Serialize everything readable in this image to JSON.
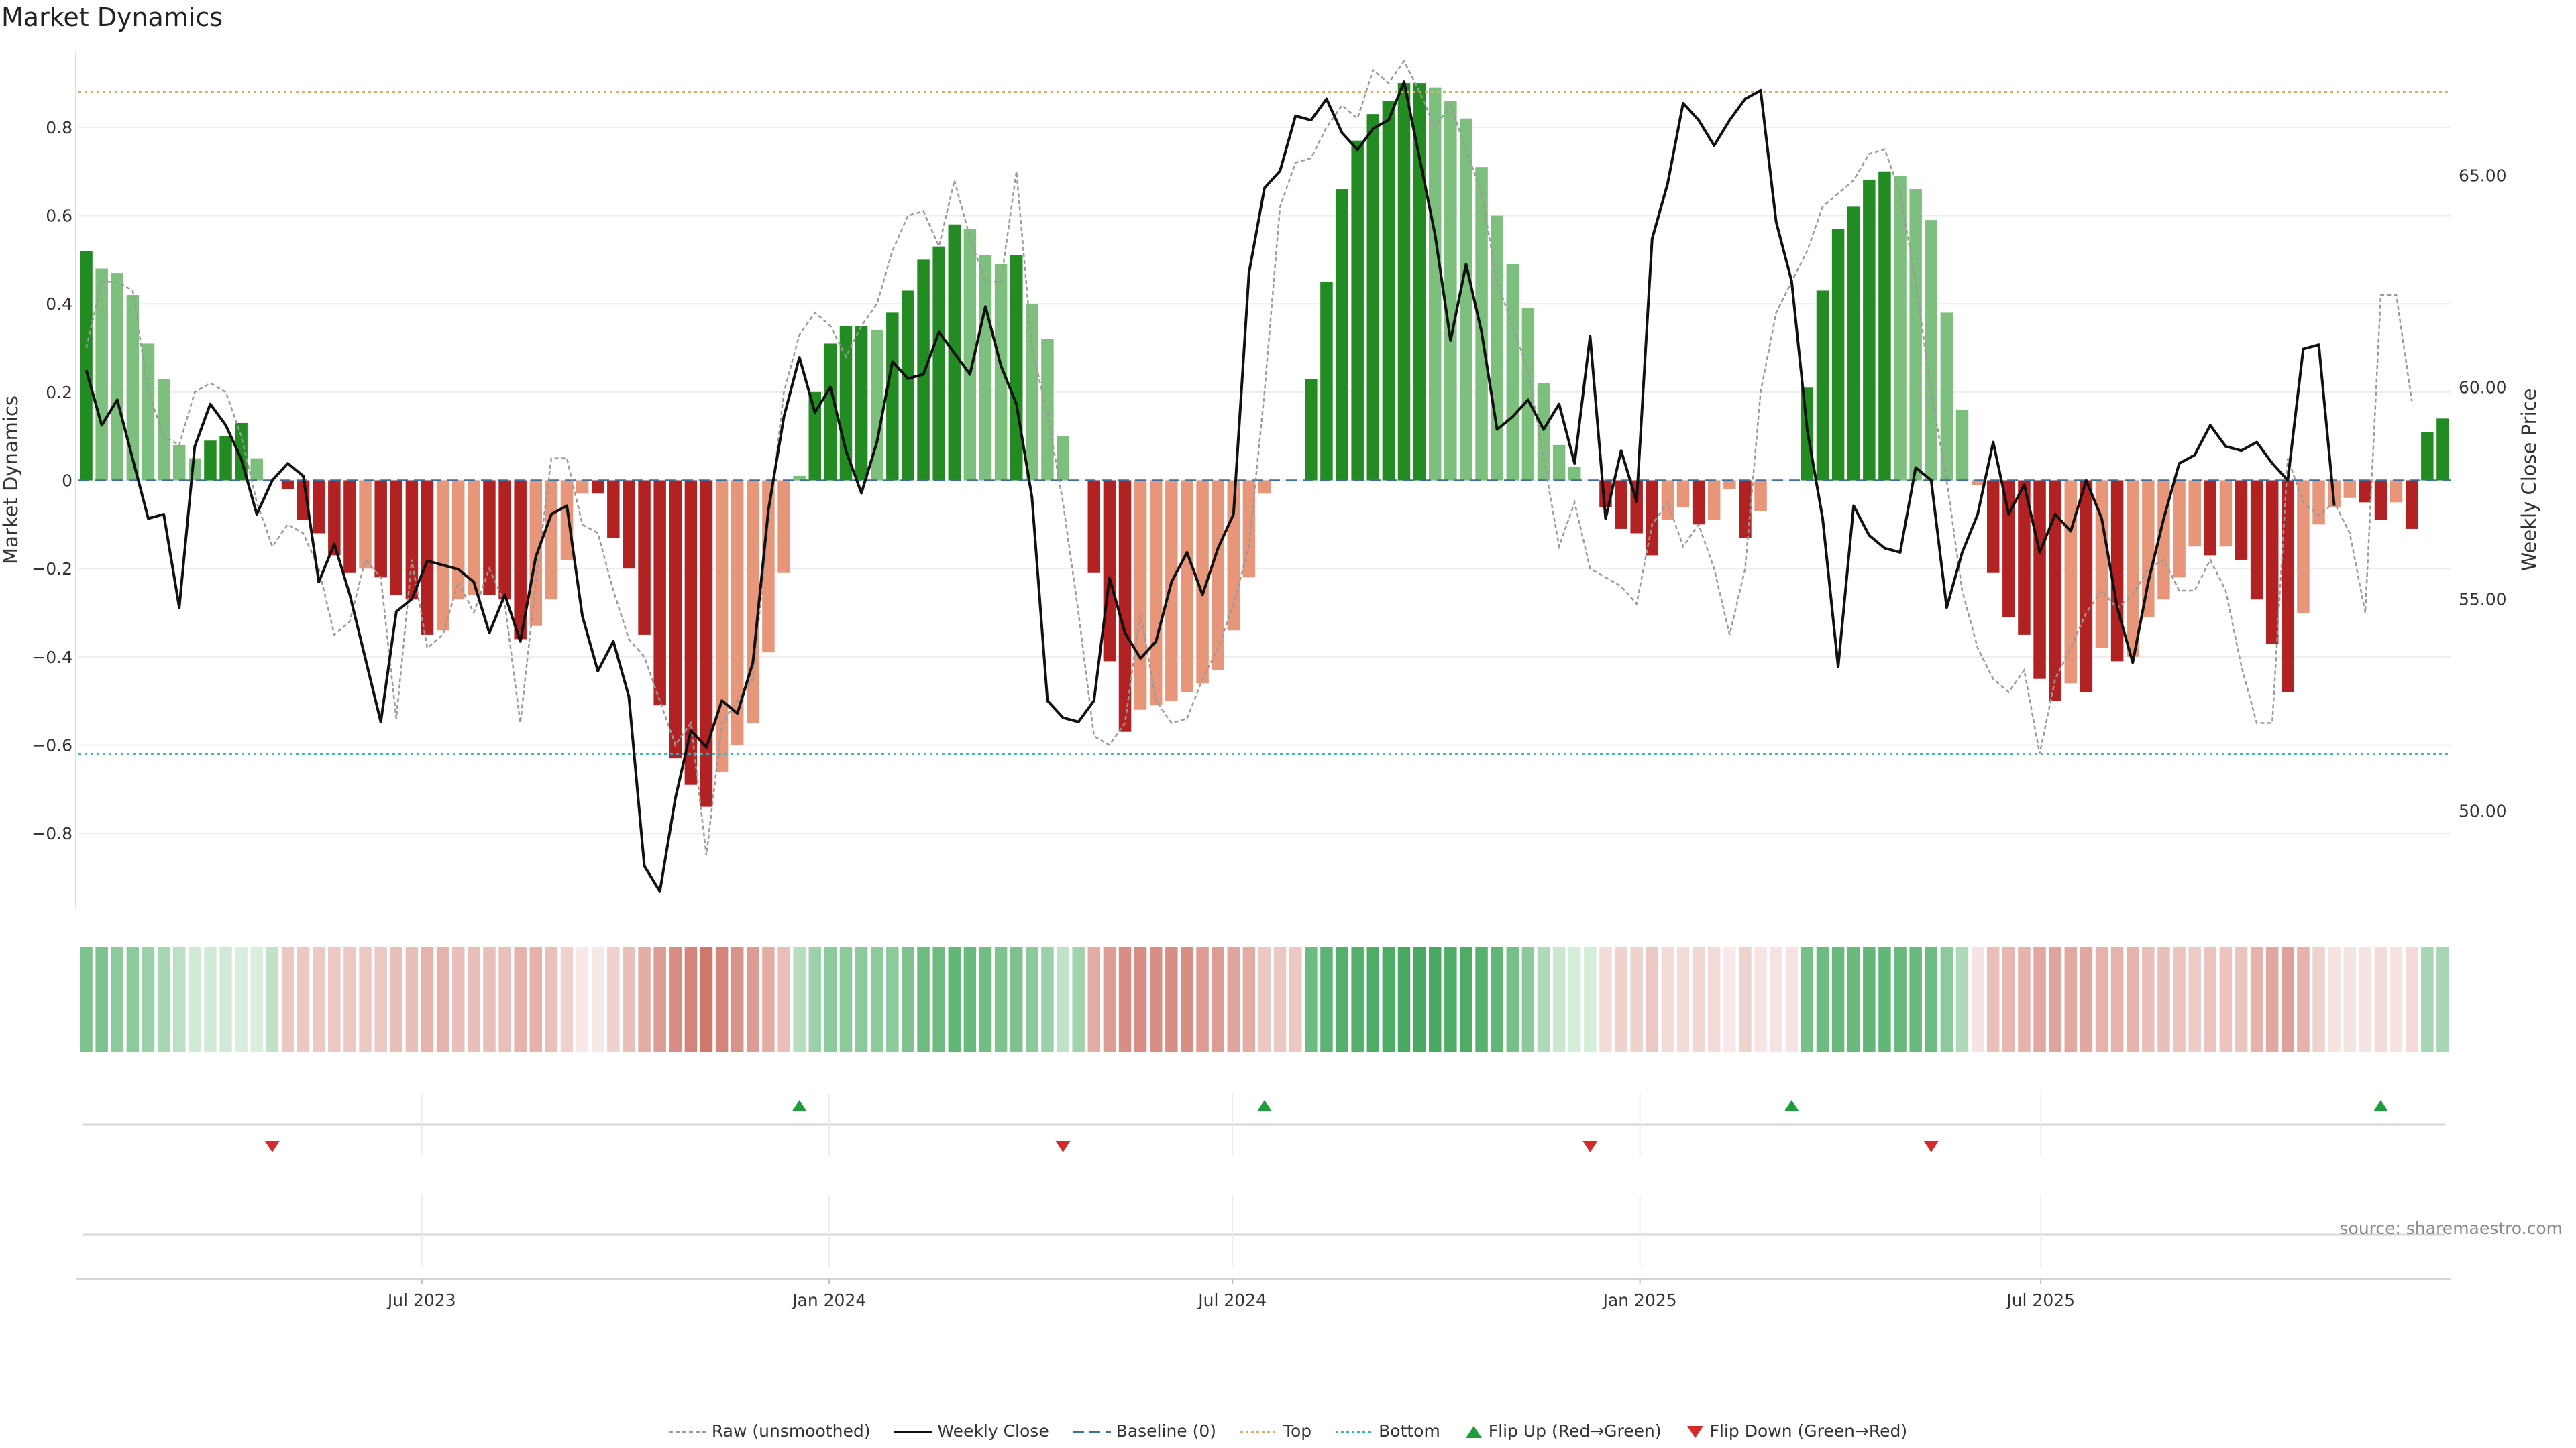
{
  "title": "Market Dynamics",
  "source": "source: sharemaestro.com",
  "colors": {
    "pos_strong": "#228b22",
    "pos_weak": "#7dbf7d",
    "neg_strong": "#b22222",
    "neg_weak": "#e8967a",
    "close": "#111111",
    "raw": "#9a9a9a",
    "top_line": "#e8a860",
    "bottom_line": "#2ab5c8",
    "baseline": "#3a6fa0",
    "flip_up": "#1e9e3a",
    "flip_down": "#d42a2a"
  },
  "legend": {
    "raw": "Raw (unsmoothed)",
    "close": "Weekly Close",
    "baseline": "Baseline (0)",
    "top": "Top",
    "bottom": "Bottom",
    "flip_up": "Flip Up (Red→Green)",
    "flip_down": "Flip Down (Green→Red)"
  },
  "chart_data": {
    "type": "bar",
    "start_date": "2023-01-27",
    "ylabel_left": "Market Dynamics",
    "ylabel_right": "Weekly Close Price",
    "ylim_left": [
      -0.97,
      0.97
    ],
    "ylim_right": [
      47.7,
      67.9
    ],
    "yticks_left": [
      0.8,
      0.6,
      0.4,
      0.2,
      0,
      -0.2,
      -0.4,
      -0.6,
      -0.8
    ],
    "yticks_left_labels": [
      "0.8",
      "0.6",
      "0.4",
      "0.2",
      "0",
      "−0.2",
      "−0.4",
      "−0.6",
      "−0.8"
    ],
    "yticks_right": [
      65,
      60,
      55,
      50
    ],
    "yticks_right_labels": [
      "65.00",
      "60.00",
      "55.00",
      "50.00"
    ],
    "xticks": [
      {
        "date": "2023-07-01",
        "label": "Jul 2023"
      },
      {
        "date": "2024-01-01",
        "label": "Jan 2024"
      },
      {
        "date": "2024-07-01",
        "label": "Jul 2024"
      },
      {
        "date": "2025-01-01",
        "label": "Jan 2025"
      },
      {
        "date": "2025-07-01",
        "label": "Jul 2025"
      }
    ],
    "top": 0.88,
    "bottom": -0.62,
    "baseline": 0,
    "series": [
      {
        "name": "Market Dynamics",
        "values": [
          0.52,
          0.48,
          0.47,
          0.42,
          0.31,
          0.23,
          0.08,
          0.05,
          0.09,
          0.1,
          0.13,
          0.05,
          0.0,
          -0.02,
          -0.09,
          -0.12,
          -0.17,
          -0.21,
          -0.2,
          -0.22,
          -0.26,
          -0.27,
          -0.35,
          -0.34,
          -0.27,
          -0.26,
          -0.26,
          -0.27,
          -0.36,
          -0.33,
          -0.27,
          -0.18,
          -0.03,
          -0.03,
          -0.13,
          -0.2,
          -0.35,
          -0.51,
          -0.63,
          -0.69,
          -0.74,
          -0.66,
          -0.6,
          -0.55,
          -0.39,
          -0.21,
          0.01,
          0.2,
          0.31,
          0.35,
          0.35,
          0.34,
          0.38,
          0.43,
          0.5,
          0.53,
          0.58,
          0.57,
          0.51,
          0.49,
          0.51,
          0.4,
          0.32,
          0.1,
          0.0,
          -0.21,
          -0.41,
          -0.57,
          -0.52,
          -0.51,
          -0.5,
          -0.48,
          -0.46,
          -0.43,
          -0.34,
          -0.22,
          -0.03,
          0.0,
          0.0,
          0.23,
          0.45,
          0.66,
          0.77,
          0.83,
          0.86,
          0.9,
          0.9,
          0.89,
          0.86,
          0.82,
          0.71,
          0.6,
          0.49,
          0.39,
          0.22,
          0.08,
          0.03,
          0.0,
          -0.06,
          -0.11,
          -0.12,
          -0.17,
          -0.09,
          -0.06,
          -0.1,
          -0.09,
          -0.02,
          -0.13,
          -0.07,
          0.0,
          0.0,
          0.21,
          0.43,
          0.57,
          0.62,
          0.68,
          0.7,
          0.69,
          0.66,
          0.59,
          0.38,
          0.16,
          -0.01,
          -0.21,
          -0.31,
          -0.35,
          -0.45,
          -0.5,
          -0.46,
          -0.48,
          -0.38,
          -0.41,
          -0.4,
          -0.31,
          -0.27,
          -0.22,
          -0.15,
          -0.17,
          -0.15,
          -0.18,
          -0.27,
          -0.37,
          -0.48,
          -0.3,
          -0.1,
          -0.06,
          -0.04,
          -0.05,
          -0.09,
          -0.05,
          -0.11,
          0.11,
          0.14
        ]
      },
      {
        "name": "Weekly Close",
        "values": [
          60.4,
          59.1,
          59.7,
          58.3,
          56.9,
          57.0,
          54.8,
          58.6,
          59.6,
          59.1,
          58.3,
          57.0,
          57.8,
          58.2,
          57.9,
          55.4,
          56.3,
          55.1,
          53.6,
          52.1,
          54.7,
          55.0,
          55.9,
          55.8,
          55.7,
          55.4,
          54.2,
          55.1,
          54.0,
          56.0,
          57.0,
          57.2,
          54.6,
          53.3,
          54.0,
          52.7,
          48.7,
          48.1,
          50.3,
          51.9,
          51.5,
          52.6,
          52.3,
          53.5,
          57.1,
          59.3,
          60.7,
          59.4,
          60.0,
          58.5,
          57.5,
          58.7,
          60.6,
          60.2,
          60.3,
          61.3,
          60.8,
          60.3,
          61.9,
          60.5,
          59.6,
          57.4,
          52.6,
          52.2,
          52.1,
          52.6,
          55.5,
          54.2,
          53.6,
          54.0,
          55.4,
          56.1,
          55.1,
          56.2,
          57.0,
          62.7,
          64.7,
          65.1,
          66.4,
          66.3,
          66.8,
          66.0,
          65.6,
          66.1,
          66.3,
          67.2,
          65.4,
          63.6,
          61.1,
          62.9,
          61.3,
          59.0,
          59.3,
          59.7,
          59.0,
          59.6,
          58.2,
          61.2,
          56.9,
          58.5,
          57.3,
          63.5,
          64.8,
          66.7,
          66.3,
          65.7,
          66.3,
          66.8,
          67.0,
          63.9,
          62.5,
          59.0,
          56.9,
          53.4,
          57.2,
          56.5,
          56.2,
          56.1,
          58.1,
          57.8,
          54.8,
          56.1,
          57.0,
          58.7,
          57.0,
          57.7,
          56.1,
          57.0,
          56.6,
          57.8,
          56.9,
          54.8,
          53.5,
          55.4,
          56.9,
          58.2,
          58.4,
          59.1,
          58.6,
          58.5,
          58.7,
          58.2,
          57.8,
          60.9,
          61.0,
          57.2
        ]
      },
      {
        "name": "Raw (unsmoothed)",
        "values": [
          0.3,
          0.45,
          0.45,
          0.43,
          0.2,
          0.1,
          0.08,
          0.2,
          0.22,
          0.2,
          0.1,
          -0.05,
          -0.15,
          -0.1,
          -0.12,
          -0.2,
          -0.35,
          -0.32,
          -0.18,
          -0.22,
          -0.54,
          -0.18,
          -0.38,
          -0.35,
          -0.23,
          -0.3,
          -0.2,
          -0.28,
          -0.55,
          -0.23,
          0.05,
          0.05,
          -0.1,
          -0.12,
          -0.25,
          -0.36,
          -0.4,
          -0.5,
          -0.6,
          -0.55,
          -0.85,
          -0.55,
          -0.5,
          -0.45,
          -0.1,
          0.2,
          0.33,
          0.38,
          0.35,
          0.28,
          0.35,
          0.4,
          0.52,
          0.6,
          0.61,
          0.53,
          0.68,
          0.55,
          0.45,
          0.45,
          0.7,
          0.3,
          0.15,
          -0.05,
          -0.3,
          -0.58,
          -0.6,
          -0.55,
          -0.3,
          -0.5,
          -0.55,
          -0.54,
          -0.45,
          -0.38,
          -0.28,
          -0.15,
          0.2,
          0.62,
          0.72,
          0.73,
          0.8,
          0.85,
          0.82,
          0.93,
          0.9,
          0.95,
          0.88,
          0.8,
          0.85,
          0.75,
          0.65,
          0.45,
          0.35,
          0.25,
          0.05,
          -0.15,
          -0.05,
          -0.2,
          -0.22,
          -0.24,
          -0.28,
          -0.1,
          -0.05,
          -0.15,
          -0.1,
          -0.2,
          -0.35,
          -0.2,
          0.2,
          0.38,
          0.45,
          0.52,
          0.62,
          0.65,
          0.68,
          0.74,
          0.75,
          0.65,
          0.45,
          0.2,
          0.0,
          -0.25,
          -0.38,
          -0.45,
          -0.48,
          -0.43,
          -0.62,
          -0.45,
          -0.38,
          -0.3,
          -0.25,
          -0.29,
          -0.26,
          -0.2,
          -0.18,
          -0.25,
          -0.25,
          -0.18,
          -0.25,
          -0.42,
          -0.55,
          -0.55,
          0.05,
          -0.05,
          -0.08,
          -0.05,
          -0.12,
          -0.3,
          0.42,
          0.42,
          0.18
        ]
      }
    ],
    "heat_strip": [
      0.62,
      0.62,
      0.55,
      0.55,
      0.48,
      0.42,
      0.32,
      0.22,
      0.22,
      0.22,
      0.18,
      0.18,
      0.3,
      0.3,
      0.3,
      0.3,
      0.3,
      0.3,
      0.3,
      0.3,
      0.35,
      0.35,
      0.42,
      0.42,
      0.35,
      0.35,
      0.35,
      0.35,
      0.42,
      0.42,
      0.35,
      0.25,
      0.12,
      0.12,
      0.25,
      0.35,
      0.45,
      0.55,
      0.62,
      0.68,
      0.75,
      0.68,
      0.6,
      0.55,
      0.45,
      0.35,
      0.35,
      0.48,
      0.55,
      0.55,
      0.55,
      0.55,
      0.55,
      0.62,
      0.7,
      0.7,
      0.75,
      0.72,
      0.68,
      0.62,
      0.62,
      0.55,
      0.48,
      0.3,
      0.45,
      0.45,
      0.55,
      0.62,
      0.62,
      0.62,
      0.62,
      0.62,
      0.55,
      0.55,
      0.5,
      0.45,
      0.3,
      0.3,
      0.3,
      0.7,
      0.78,
      0.82,
      0.82,
      0.85,
      0.85,
      0.88,
      0.88,
      0.88,
      0.85,
      0.85,
      0.8,
      0.75,
      0.65,
      0.55,
      0.38,
      0.25,
      0.2,
      0.2,
      0.2,
      0.25,
      0.25,
      0.3,
      0.2,
      0.2,
      0.22,
      0.2,
      0.12,
      0.25,
      0.15,
      0.15,
      0.15,
      0.65,
      0.7,
      0.72,
      0.72,
      0.75,
      0.75,
      0.72,
      0.72,
      0.7,
      0.55,
      0.38,
      0.15,
      0.35,
      0.4,
      0.42,
      0.48,
      0.5,
      0.48,
      0.48,
      0.42,
      0.42,
      0.42,
      0.35,
      0.35,
      0.32,
      0.28,
      0.32,
      0.32,
      0.32,
      0.42,
      0.48,
      0.52,
      0.42,
      0.25,
      0.15,
      0.15,
      0.15,
      0.2,
      0.15,
      0.2,
      0.42,
      0.42
    ],
    "flips_up": [
      46,
      76,
      110,
      148
    ],
    "flips_down": [
      12,
      63,
      97,
      119
    ]
  }
}
